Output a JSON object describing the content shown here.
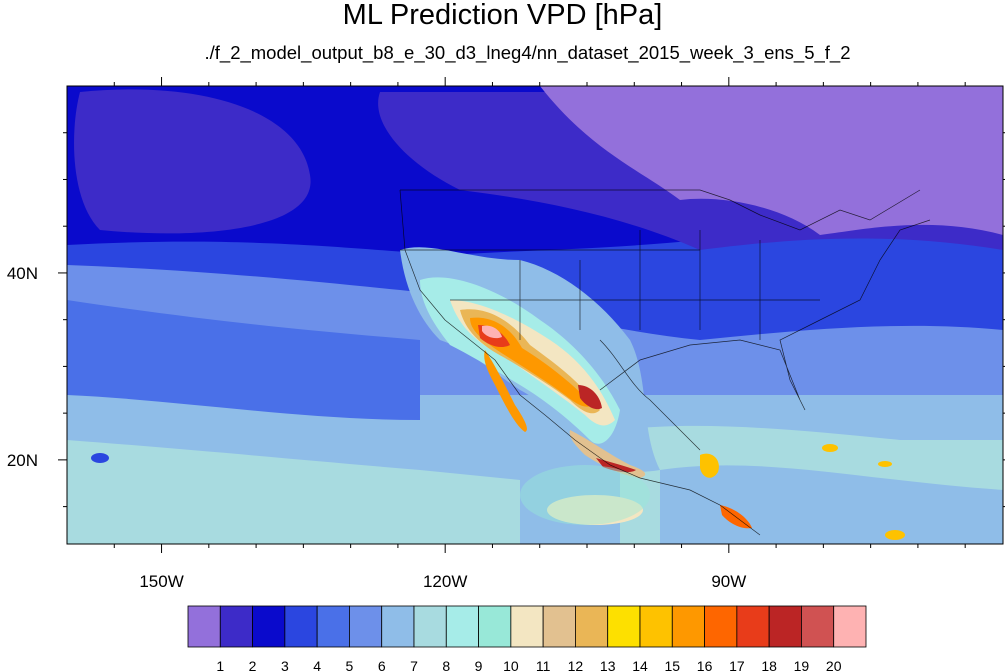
{
  "title": "ML Prediction VPD [hPa]",
  "subtitle": "./f_2_model_output_b8_e_30_d3_lneg4/nn_dataset_2015_week_3_ens_5_f_2",
  "map": {
    "lon_range": [
      -160,
      -61
    ],
    "lat_range": [
      11,
      60
    ],
    "x_ticks": [
      {
        "lon": -150,
        "label": "150W"
      },
      {
        "lon": -120,
        "label": "120W"
      },
      {
        "lon": -90,
        "label": "90W"
      }
    ],
    "y_ticks": [
      {
        "lat": 40,
        "label": "40N"
      },
      {
        "lat": 20,
        "label": "20N"
      }
    ]
  },
  "colorbar": {
    "colors": [
      "#9370db",
      "#3d2bc8",
      "#0a0acc",
      "#2b46e0",
      "#4a70e8",
      "#6d90ea",
      "#8fbde8",
      "#a8dbe0",
      "#a6ece8",
      "#98e8d8",
      "#f3e6c2",
      "#e2c190",
      "#eab656",
      "#fde000",
      "#fec200",
      "#fe9800",
      "#fe6600",
      "#e83c1a",
      "#bb2525",
      "#d05252",
      "#feb2b2"
    ],
    "labels": [
      "1",
      "2",
      "3",
      "4",
      "5",
      "6",
      "7",
      "8",
      "9",
      "10",
      "11",
      "12",
      "13",
      "14",
      "15",
      "16",
      "17",
      "18",
      "19",
      "20"
    ]
  }
}
